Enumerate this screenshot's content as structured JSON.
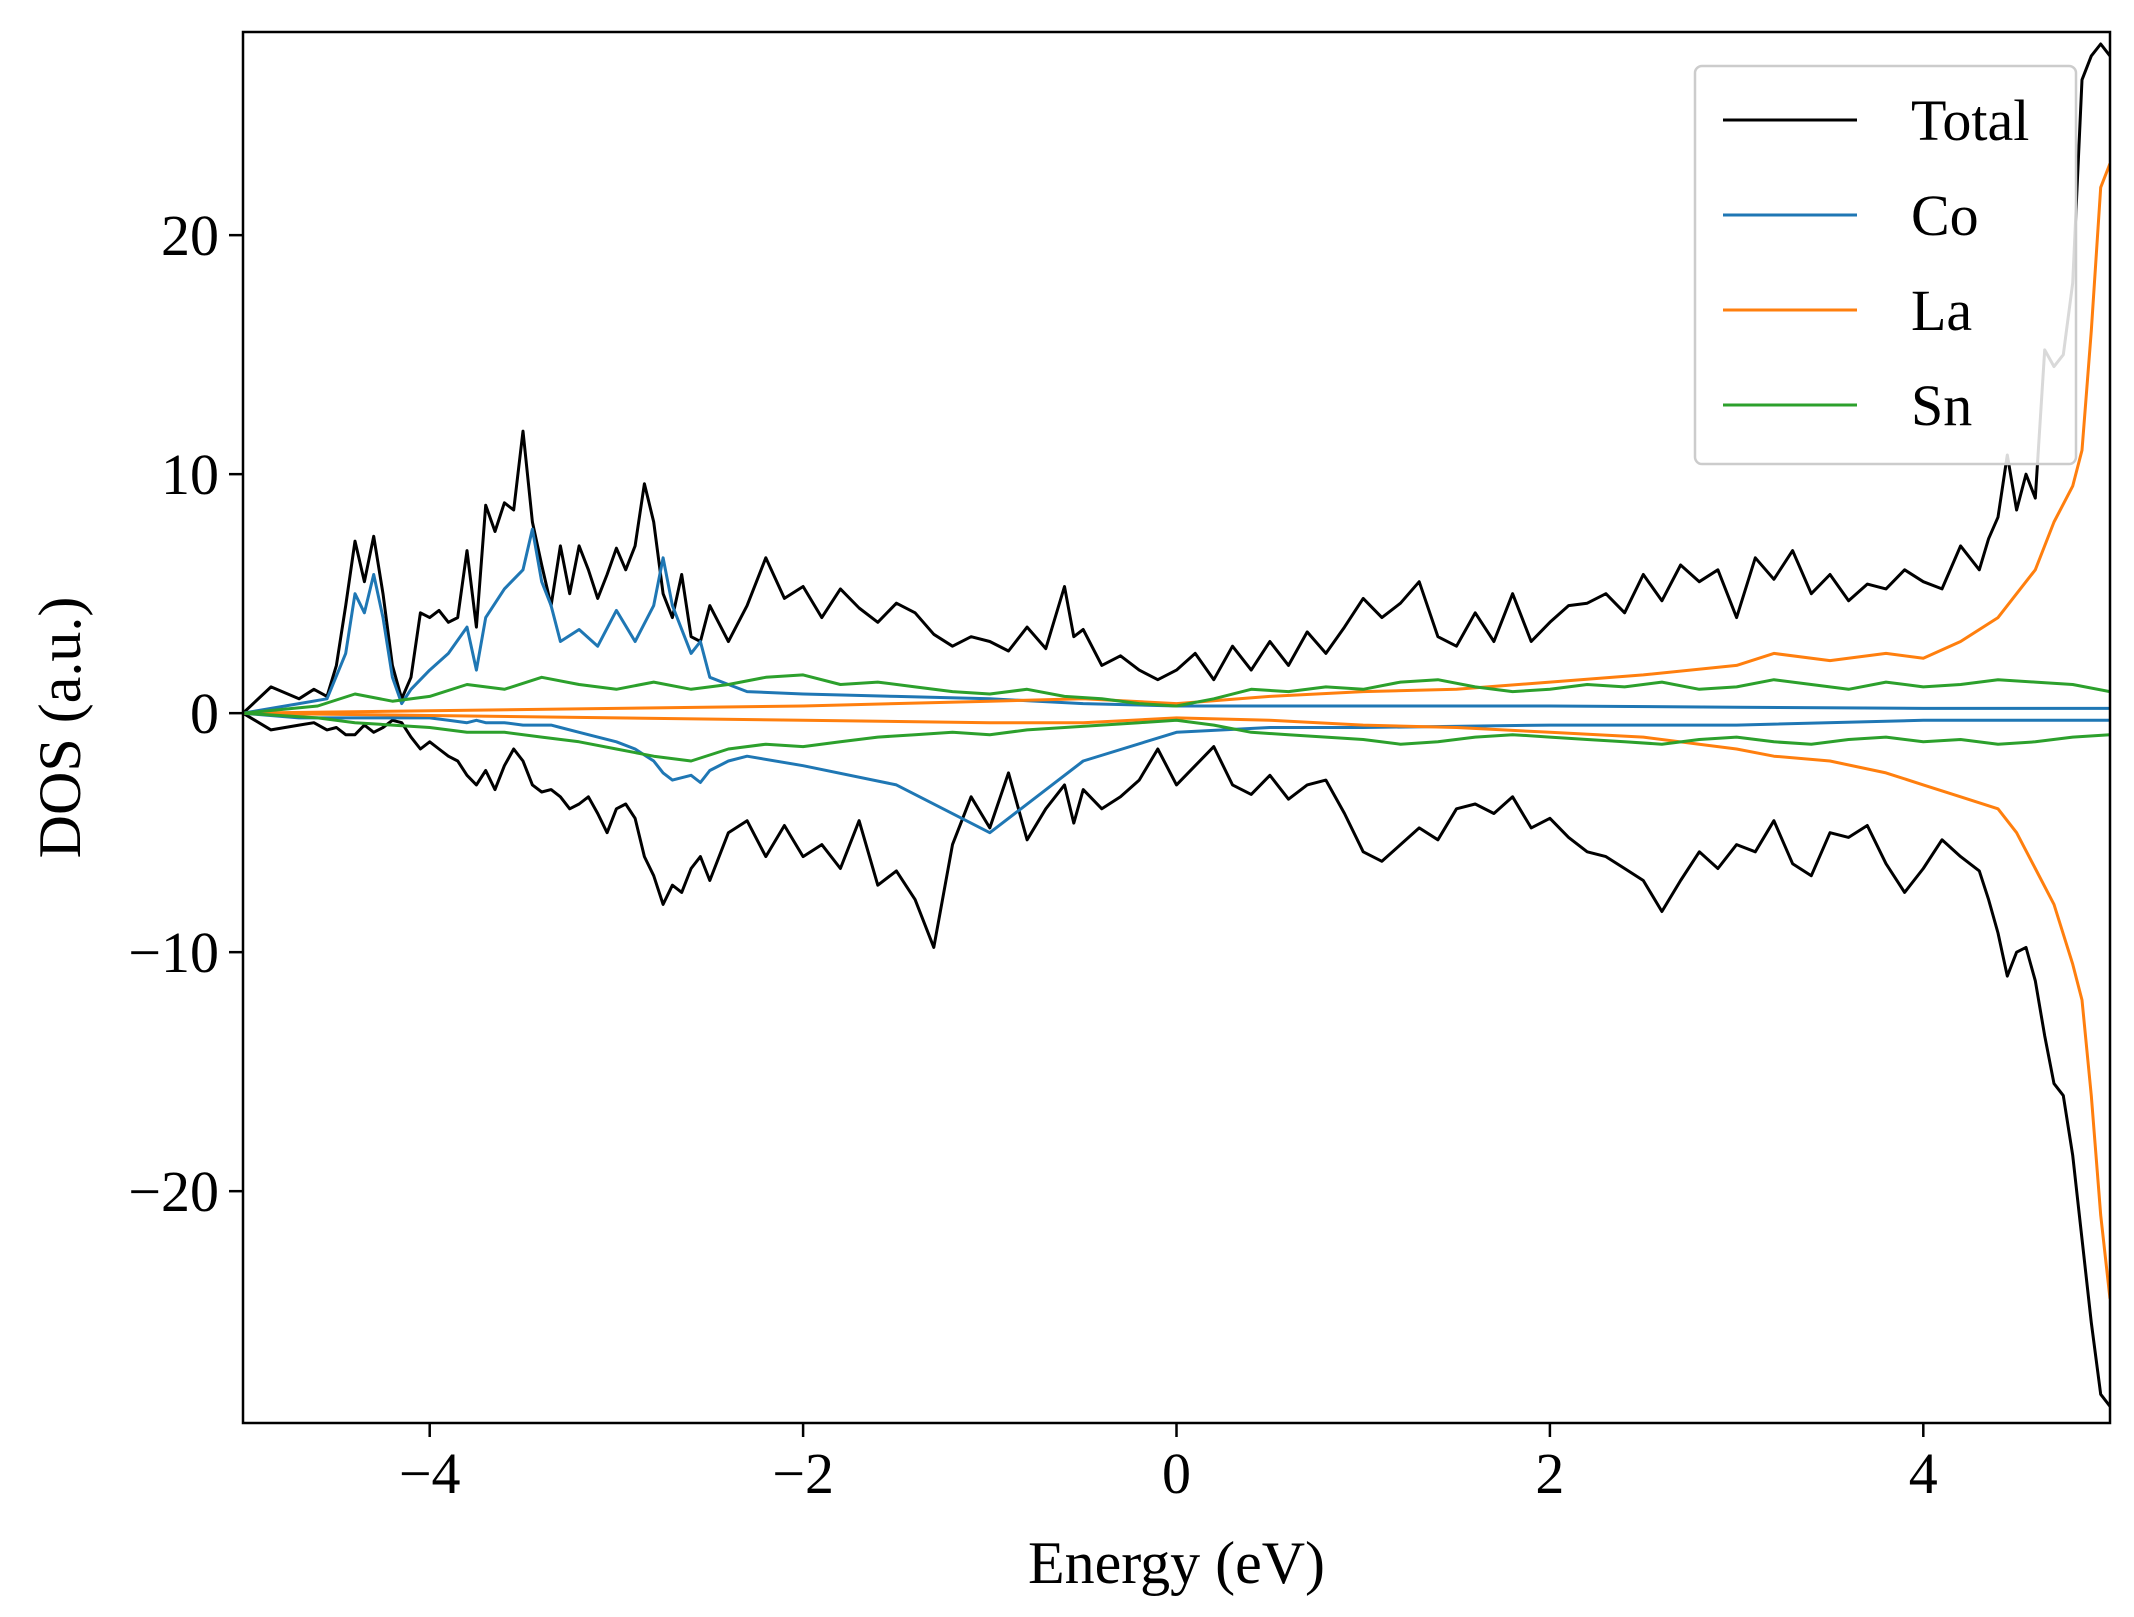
{
  "chart_data": {
    "type": "line",
    "title": "",
    "xlabel": "Energy (eV)",
    "ylabel": "DOS (a.u.)",
    "xlim": [
      -5,
      5
    ],
    "ylim": [
      -29.7,
      28.5
    ],
    "xticks": [
      {
        "value": -4,
        "label": "−4"
      },
      {
        "value": -2,
        "label": "−2"
      },
      {
        "value": 0,
        "label": "0"
      },
      {
        "value": 2,
        "label": "2"
      },
      {
        "value": 4,
        "label": "4"
      }
    ],
    "yticks": [
      {
        "value": 20,
        "label": "20"
      },
      {
        "value": 10,
        "label": "10"
      },
      {
        "value": 0,
        "label": "0"
      },
      {
        "value": -10,
        "label": "−10"
      },
      {
        "value": -20,
        "label": "−20"
      }
    ],
    "grid": false,
    "legend_position": "top-right",
    "series": [
      {
        "name": "Total",
        "color": "#000000",
        "x": [
          -5,
          -4.85,
          -4.7,
          -4.62,
          -4.55,
          -4.5,
          -4.45,
          -4.4,
          -4.35,
          -4.3,
          -4.25,
          -4.2,
          -4.15,
          -4.1,
          -4.05,
          -4.0,
          -3.95,
          -3.9,
          -3.85,
          -3.8,
          -3.75,
          -3.7,
          -3.65,
          -3.6,
          -3.55,
          -3.5,
          -3.45,
          -3.4,
          -3.35,
          -3.3,
          -3.25,
          -3.2,
          -3.15,
          -3.1,
          -3.05,
          -3.0,
          -2.95,
          -2.9,
          -2.85,
          -2.8,
          -2.75,
          -2.7,
          -2.65,
          -2.6,
          -2.55,
          -2.5,
          -2.4,
          -2.3,
          -2.2,
          -2.1,
          -2.0,
          -1.9,
          -1.8,
          -1.7,
          -1.6,
          -1.5,
          -1.4,
          -1.3,
          -1.2,
          -1.1,
          -1.0,
          -0.9,
          -0.8,
          -0.7,
          -0.6,
          -0.55,
          -0.5,
          -0.4,
          -0.3,
          -0.2,
          -0.1,
          0.0,
          0.1,
          0.2,
          0.3,
          0.4,
          0.5,
          0.6,
          0.7,
          0.8,
          0.9,
          1.0,
          1.1,
          1.2,
          1.3,
          1.4,
          1.5,
          1.6,
          1.7,
          1.8,
          1.9,
          2.0,
          2.1,
          2.2,
          2.3,
          2.4,
          2.5,
          2.6,
          2.7,
          2.8,
          2.9,
          3.0,
          3.1,
          3.2,
          3.3,
          3.4,
          3.5,
          3.6,
          3.7,
          3.8,
          3.9,
          4.0,
          4.1,
          4.2,
          4.3,
          4.35,
          4.4,
          4.45,
          4.5,
          4.55,
          4.6,
          4.65,
          4.7,
          4.75,
          4.8,
          4.85,
          4.9,
          4.95,
          5.0
        ],
        "up": [
          0,
          1.1,
          0.6,
          1.0,
          0.7,
          2.0,
          4.5,
          7.2,
          5.5,
          7.4,
          5.0,
          2.0,
          0.6,
          1.5,
          4.2,
          4.0,
          4.3,
          3.8,
          4.0,
          6.8,
          3.6,
          8.7,
          7.6,
          8.8,
          8.5,
          11.8,
          8.0,
          6.2,
          4.5,
          7.0,
          5.0,
          7.0,
          6.0,
          4.8,
          5.8,
          6.9,
          6.0,
          7.0,
          9.6,
          8.0,
          5.0,
          4.0,
          5.8,
          3.2,
          3.0,
          4.5,
          3.0,
          4.5,
          6.5,
          4.8,
          5.3,
          4.0,
          5.2,
          4.4,
          3.8,
          4.6,
          4.2,
          3.3,
          2.8,
          3.2,
          3.0,
          2.6,
          3.6,
          2.7,
          5.3,
          3.2,
          3.5,
          2.0,
          2.4,
          1.8,
          1.4,
          1.8,
          2.5,
          1.4,
          2.8,
          1.8,
          3.0,
          2.0,
          3.4,
          2.5,
          3.6,
          4.8,
          4.0,
          4.6,
          5.5,
          3.2,
          2.8,
          4.2,
          3.0,
          5.0,
          3.0,
          3.8,
          4.5,
          4.6,
          5.0,
          4.2,
          5.8,
          4.7,
          6.2,
          5.5,
          6.0,
          4.0,
          6.5,
          5.6,
          6.8,
          5.0,
          5.8,
          4.7,
          5.4,
          5.2,
          6.0,
          5.5,
          5.2,
          7.0,
          6.0,
          7.3,
          8.2,
          10.8,
          8.5,
          10.0,
          9.0,
          15.2,
          14.5,
          15.0,
          18.0,
          26.5,
          27.5,
          28.0,
          27.5
        ],
        "dn": [
          0,
          -0.7,
          -0.5,
          -0.4,
          -0.7,
          -0.6,
          -0.9,
          -0.9,
          -0.5,
          -0.8,
          -0.6,
          -0.3,
          -0.4,
          -1.0,
          -1.5,
          -1.2,
          -1.5,
          -1.8,
          -2.0,
          -2.6,
          -3.0,
          -2.4,
          -3.2,
          -2.2,
          -1.5,
          -2.0,
          -3.0,
          -3.3,
          -3.2,
          -3.5,
          -4.0,
          -3.8,
          -3.5,
          -4.2,
          -5.0,
          -4.0,
          -3.8,
          -4.4,
          -6.0,
          -6.8,
          -8.0,
          -7.2,
          -7.5,
          -6.5,
          -6.0,
          -7.0,
          -5.0,
          -4.5,
          -6.0,
          -4.7,
          -6.0,
          -5.5,
          -6.5,
          -4.5,
          -7.2,
          -6.6,
          -7.8,
          -9.8,
          -5.5,
          -3.5,
          -4.8,
          -2.5,
          -5.3,
          -4.0,
          -3.0,
          -4.6,
          -3.2,
          -4.0,
          -3.5,
          -2.8,
          -1.5,
          -3.0,
          -2.2,
          -1.4,
          -3.0,
          -3.4,
          -2.6,
          -3.6,
          -3.0,
          -2.8,
          -4.2,
          -5.8,
          -6.2,
          -5.5,
          -4.8,
          -5.3,
          -4.0,
          -3.8,
          -4.2,
          -3.5,
          -4.8,
          -4.4,
          -5.2,
          -5.8,
          -6.0,
          -6.5,
          -7.0,
          -8.3,
          -7.0,
          -5.8,
          -6.5,
          -5.5,
          -5.8,
          -4.5,
          -6.3,
          -6.8,
          -5.0,
          -5.2,
          -4.7,
          -6.3,
          -7.5,
          -6.5,
          -5.3,
          -6.0,
          -6.6,
          -7.8,
          -9.2,
          -11.0,
          -10.0,
          -9.8,
          -11.2,
          -13.5,
          -15.5,
          -16.0,
          -18.5,
          -22.0,
          -25.5,
          -28.5,
          -29.0
        ]
      },
      {
        "name": "Co",
        "color": "#1f77b4",
        "x": [
          -5,
          -4.7,
          -4.55,
          -4.45,
          -4.4,
          -4.35,
          -4.3,
          -4.25,
          -4.2,
          -4.15,
          -4.1,
          -4.0,
          -3.9,
          -3.8,
          -3.75,
          -3.7,
          -3.6,
          -3.5,
          -3.45,
          -3.4,
          -3.35,
          -3.3,
          -3.2,
          -3.1,
          -3.0,
          -2.9,
          -2.8,
          -2.75,
          -2.7,
          -2.6,
          -2.55,
          -2.5,
          -2.4,
          -2.3,
          -2.0,
          -1.5,
          -1.0,
          -0.5,
          0.0,
          0.5,
          1.0,
          2.0,
          3.0,
          4.0,
          5.0
        ],
        "up": [
          0,
          0.4,
          0.6,
          2.5,
          5.0,
          4.2,
          5.8,
          4.0,
          1.5,
          0.4,
          1.0,
          1.8,
          2.5,
          3.6,
          1.8,
          4.0,
          5.2,
          6.0,
          7.7,
          5.5,
          4.5,
          3.0,
          3.5,
          2.8,
          4.3,
          3.0,
          4.5,
          6.5,
          4.5,
          2.5,
          3.0,
          1.5,
          1.2,
          0.9,
          0.8,
          0.7,
          0.6,
          0.4,
          0.3,
          0.3,
          0.3,
          0.3,
          0.25,
          0.2,
          0.2
        ],
        "dn": [
          0,
          -0.2,
          -0.2,
          -0.2,
          -0.2,
          -0.2,
          -0.2,
          -0.2,
          -0.2,
          -0.2,
          -0.2,
          -0.2,
          -0.3,
          -0.4,
          -0.3,
          -0.4,
          -0.4,
          -0.5,
          -0.5,
          -0.5,
          -0.5,
          -0.6,
          -0.8,
          -1.0,
          -1.2,
          -1.5,
          -2.0,
          -2.5,
          -2.8,
          -2.6,
          -2.9,
          -2.4,
          -2.0,
          -1.8,
          -2.2,
          -3.0,
          -5.0,
          -2.0,
          -0.8,
          -0.6,
          -0.6,
          -0.5,
          -0.5,
          -0.3,
          -0.3
        ]
      },
      {
        "name": "La",
        "color": "#ff7f0e",
        "x": [
          -5,
          -4.0,
          -3.0,
          -2.0,
          -1.0,
          -0.5,
          0.0,
          0.5,
          1.0,
          1.5,
          2.0,
          2.5,
          3.0,
          3.2,
          3.5,
          3.8,
          4.0,
          4.2,
          4.4,
          4.5,
          4.6,
          4.7,
          4.8,
          4.85,
          4.9,
          4.95,
          5.0
        ],
        "up": [
          0,
          0.1,
          0.2,
          0.3,
          0.5,
          0.6,
          0.4,
          0.7,
          0.9,
          1.0,
          1.3,
          1.6,
          2.0,
          2.5,
          2.2,
          2.5,
          2.3,
          3.0,
          4.0,
          5.0,
          6.0,
          8.0,
          9.5,
          11.0,
          16.0,
          22.0,
          23.0
        ],
        "dn": [
          0,
          -0.1,
          -0.2,
          -0.3,
          -0.4,
          -0.4,
          -0.2,
          -0.3,
          -0.5,
          -0.6,
          -0.8,
          -1.0,
          -1.5,
          -1.8,
          -2.0,
          -2.5,
          -3.0,
          -3.5,
          -4.0,
          -5.0,
          -6.5,
          -8.0,
          -10.5,
          -12.0,
          -16.0,
          -21.0,
          -24.5
        ]
      },
      {
        "name": "Sn",
        "color": "#2ca02c",
        "x": [
          -5,
          -4.6,
          -4.4,
          -4.2,
          -4.0,
          -3.8,
          -3.6,
          -3.4,
          -3.2,
          -3.0,
          -2.8,
          -2.6,
          -2.4,
          -2.2,
          -2.0,
          -1.8,
          -1.6,
          -1.4,
          -1.2,
          -1.0,
          -0.8,
          -0.6,
          -0.4,
          -0.2,
          0.0,
          0.2,
          0.4,
          0.6,
          0.8,
          1.0,
          1.2,
          1.4,
          1.6,
          1.8,
          2.0,
          2.2,
          2.4,
          2.6,
          2.8,
          3.0,
          3.2,
          3.4,
          3.6,
          3.8,
          4.0,
          4.2,
          4.4,
          4.6,
          4.8,
          5.0
        ],
        "up": [
          0,
          0.3,
          0.8,
          0.5,
          0.7,
          1.2,
          1.0,
          1.5,
          1.2,
          1.0,
          1.3,
          1.0,
          1.2,
          1.5,
          1.6,
          1.2,
          1.3,
          1.1,
          0.9,
          0.8,
          1.0,
          0.7,
          0.6,
          0.4,
          0.3,
          0.6,
          1.0,
          0.9,
          1.1,
          1.0,
          1.3,
          1.4,
          1.1,
          0.9,
          1.0,
          1.2,
          1.1,
          1.3,
          1.0,
          1.1,
          1.4,
          1.2,
          1.0,
          1.3,
          1.1,
          1.2,
          1.4,
          1.3,
          1.2,
          0.9
        ],
        "dn": [
          0,
          -0.2,
          -0.4,
          -0.5,
          -0.6,
          -0.8,
          -0.8,
          -1.0,
          -1.2,
          -1.5,
          -1.8,
          -2.0,
          -1.5,
          -1.3,
          -1.4,
          -1.2,
          -1.0,
          -0.9,
          -0.8,
          -0.9,
          -0.7,
          -0.6,
          -0.5,
          -0.4,
          -0.3,
          -0.5,
          -0.8,
          -0.9,
          -1.0,
          -1.1,
          -1.3,
          -1.2,
          -1.0,
          -0.9,
          -1.0,
          -1.1,
          -1.2,
          -1.3,
          -1.1,
          -1.0,
          -1.2,
          -1.3,
          -1.1,
          -1.0,
          -1.2,
          -1.1,
          -1.3,
          -1.2,
          -1.0,
          -0.9
        ]
      }
    ]
  }
}
